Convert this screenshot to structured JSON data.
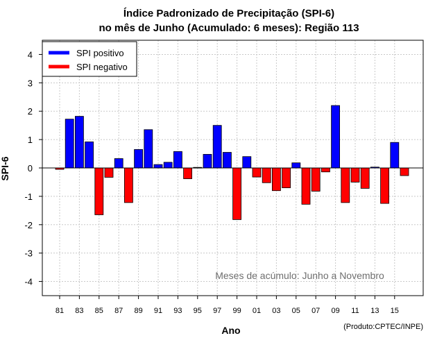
{
  "chart_data": {
    "type": "bar",
    "title_line1": "Índice Padronizado de Precipitação (SPI-6)",
    "title_line2": "no mês de Junho (Acumulado: 6 meses): Região 113",
    "xlabel": "Ano",
    "ylabel": "SPI-6",
    "ylim": [
      -4.5,
      4.5
    ],
    "yticks": [
      -4,
      -3,
      -2,
      -1,
      0,
      1,
      2,
      3,
      4
    ],
    "xtick_labels": [
      "81",
      "83",
      "85",
      "87",
      "89",
      "91",
      "93",
      "95",
      "97",
      "99",
      "01",
      "03",
      "05",
      "07",
      "09",
      "11",
      "13",
      "15"
    ],
    "categories": [
      "1981",
      "1982",
      "1983",
      "1984",
      "1985",
      "1986",
      "1987",
      "1988",
      "1989",
      "1990",
      "1991",
      "1992",
      "1993",
      "1994",
      "1995",
      "1996",
      "1997",
      "1998",
      "1999",
      "2000",
      "2001",
      "2002",
      "2003",
      "2004",
      "2005",
      "2006",
      "2007",
      "2008",
      "2009",
      "2010",
      "2011",
      "2012",
      "2013",
      "2014",
      "2015",
      "2016"
    ],
    "values": [
      -0.05,
      1.72,
      1.82,
      0.92,
      -1.65,
      -0.33,
      0.33,
      -1.22,
      0.65,
      1.35,
      0.12,
      0.2,
      0.58,
      -0.38,
      0.02,
      0.48,
      1.5,
      0.55,
      -1.82,
      0.4,
      -0.32,
      -0.52,
      -0.8,
      -0.7,
      0.18,
      -1.28,
      -0.82,
      -0.14,
      2.2,
      -1.22,
      -0.5,
      -0.72,
      0.03,
      -1.25,
      0.9,
      -0.27
    ],
    "legend": [
      {
        "label": "SPI positivo",
        "color": "#0000ff"
      },
      {
        "label": "SPI negativo",
        "color": "#ff0000"
      }
    ],
    "legend_position": "top-left",
    "annotation": "Meses de acúmulo: Junho a Novembro",
    "credit": "(Produto:CPTEC/INPE)",
    "grid": true
  }
}
